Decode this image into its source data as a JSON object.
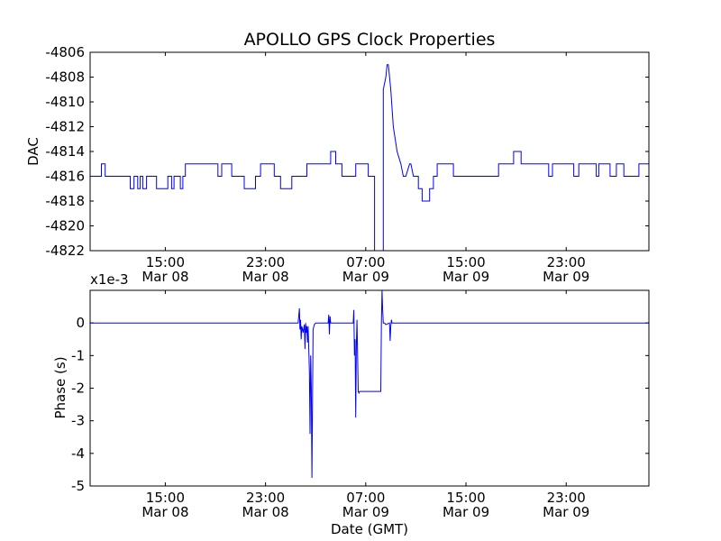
{
  "chart_data": [
    {
      "type": "line",
      "title": "APOLLO GPS Clock Properties",
      "xlabel": "",
      "ylabel": "DAC",
      "ylim": [
        -4822,
        -4806
      ],
      "yticks": [
        -4822,
        -4820,
        -4818,
        -4816,
        -4814,
        -4812,
        -4810,
        -4808,
        -4806
      ],
      "xlim": [
        9.0,
        53.6
      ],
      "xticks": [
        {
          "hours": 15,
          "time": "15:00",
          "date": "Mar 08"
        },
        {
          "hours": 23,
          "time": "23:00",
          "date": "Mar 08"
        },
        {
          "hours": 31,
          "time": "07:00",
          "date": "Mar 09"
        },
        {
          "hours": 39,
          "time": "15:00",
          "date": "Mar 09"
        },
        {
          "hours": 47,
          "time": "23:00",
          "date": "Mar 09"
        }
      ],
      "line_color": "#0000ff",
      "x_unit_note": "hours since Mar 08 00:00 GMT",
      "series": [
        {
          "x": [
            9.0,
            9.9,
            9.9,
            10.2,
            10.2,
            12.2,
            12.2,
            12.5,
            12.5,
            12.8,
            12.8,
            13.0,
            13.0,
            13.2,
            13.2,
            13.5,
            13.5,
            14.3,
            14.3,
            15.2,
            15.2,
            15.5,
            15.5,
            15.7,
            15.7,
            16.2,
            16.2,
            16.4,
            16.4,
            16.6,
            16.6,
            19.2,
            19.2,
            19.5,
            19.5,
            20.3,
            20.3,
            21.3,
            21.3,
            22.2,
            22.2,
            22.6,
            22.6,
            23.7,
            23.7,
            24.2,
            24.2,
            25.1,
            25.1,
            26.3,
            26.3,
            28.2,
            28.2,
            28.6,
            28.6,
            29.1,
            29.1,
            30.2,
            30.2,
            31.2,
            31.2,
            31.7,
            31.7,
            32.4,
            32.4,
            32.6,
            32.7,
            32.8,
            33.0,
            33.2,
            33.5,
            33.8,
            34.0,
            34.2,
            34.5,
            34.6,
            34.8,
            35.2,
            35.2,
            35.5,
            35.5,
            36.1,
            36.1,
            36.4,
            36.4,
            36.7,
            36.7,
            38.0,
            38.0,
            41.6,
            41.6,
            42.8,
            42.8,
            43.4,
            43.4,
            45.6,
            45.6,
            45.9,
            45.9,
            47.6,
            47.6,
            48.0,
            48.0,
            49.4,
            49.4,
            49.6,
            49.6,
            50.5,
            50.5,
            51.0,
            51.0,
            51.6,
            51.6,
            52.8,
            52.8,
            53.6
          ],
          "y": [
            -4816,
            -4816,
            -4815,
            -4815,
            -4816,
            -4816,
            -4817,
            -4817,
            -4816,
            -4816,
            -4817,
            -4817,
            -4816,
            -4816,
            -4817,
            -4817,
            -4816,
            -4816,
            -4817,
            -4817,
            -4816,
            -4816,
            -4817,
            -4817,
            -4816,
            -4816,
            -4817,
            -4817,
            -4816,
            -4816,
            -4815,
            -4815,
            -4816,
            -4816,
            -4815,
            -4815,
            -4816,
            -4816,
            -4817,
            -4817,
            -4816,
            -4816,
            -4815,
            -4815,
            -4816,
            -4816,
            -4817,
            -4817,
            -4816,
            -4816,
            -4815,
            -4815,
            -4814,
            -4814,
            -4815,
            -4815,
            -4816,
            -4816,
            -4815,
            -4815,
            -4816,
            -4816,
            -4822,
            -4822,
            -4809,
            -4808,
            -4807,
            -4807,
            -4809,
            -4812,
            -4814,
            -4815,
            -4816,
            -4816,
            -4815,
            -4815,
            -4816,
            -4816,
            -4817,
            -4817,
            -4818,
            -4818,
            -4817,
            -4817,
            -4816,
            -4816,
            -4815,
            -4815,
            -4816,
            -4816,
            -4815,
            -4815,
            -4814,
            -4814,
            -4815,
            -4815,
            -4816,
            -4816,
            -4815,
            -4815,
            -4816,
            -4816,
            -4815,
            -4815,
            -4816,
            -4816,
            -4815,
            -4815,
            -4816,
            -4816,
            -4815,
            -4815,
            -4816,
            -4816,
            -4815,
            -4815
          ]
        }
      ]
    },
    {
      "type": "line",
      "title": "",
      "xlabel": "Date (GMT)",
      "ylabel": "Phase (s)",
      "y_offset_label": "x1e-3",
      "ylim": [
        -5,
        1
      ],
      "yticks": [
        -5,
        -4,
        -3,
        -2,
        -1,
        0
      ],
      "xlim": [
        9.0,
        53.6
      ],
      "xticks": [
        {
          "hours": 15,
          "time": "15:00",
          "date": "Mar 08"
        },
        {
          "hours": 23,
          "time": "23:00",
          "date": "Mar 08"
        },
        {
          "hours": 31,
          "time": "07:00",
          "date": "Mar 09"
        },
        {
          "hours": 39,
          "time": "15:00",
          "date": "Mar 09"
        },
        {
          "hours": 47,
          "time": "23:00",
          "date": "Mar 09"
        }
      ],
      "line_color": "#0000ff",
      "series": [
        {
          "x": [
            9.0,
            25.6,
            25.7,
            25.75,
            25.8,
            25.85,
            25.9,
            26.0,
            26.1,
            26.15,
            26.2,
            26.25,
            26.3,
            26.35,
            26.4,
            26.5,
            26.55,
            26.6,
            26.65,
            26.7,
            26.8,
            26.9,
            27.0,
            28.0,
            28.05,
            28.1,
            28.15,
            28.2,
            30.0,
            30.05,
            30.1,
            30.15,
            30.2,
            30.25,
            30.3,
            30.4,
            30.45,
            30.5,
            30.55,
            30.6,
            30.7,
            30.8,
            30.85,
            31.5,
            32.0,
            32.2,
            32.25,
            32.3,
            32.35,
            32.4,
            32.5,
            32.6,
            32.9,
            32.95,
            33.0,
            33.05,
            33.1,
            53.6
          ],
          "y": [
            0,
            0,
            0.45,
            -0.2,
            0.1,
            -0.5,
            -0.1,
            -0.3,
            -0.05,
            -0.8,
            0,
            -0.3,
            -0.1,
            -0.6,
            -0.1,
            -1.5,
            -3.4,
            -1.0,
            -2.0,
            -4.75,
            -0.2,
            -0.05,
            0,
            0,
            0.25,
            -0.35,
            0.2,
            0,
            0,
            0.4,
            -1.0,
            -0.5,
            -2.9,
            -0.7,
            0.1,
            -2.1,
            -2.15,
            -2.1,
            -2.1,
            -2.1,
            -2.1,
            -2.1,
            -2.1,
            -2.1,
            -2.1,
            -2.1,
            0,
            1.0,
            0.4,
            0,
            0,
            -0.05,
            0,
            -0.55,
            -0.1,
            0.1,
            0,
            0
          ]
        }
      ]
    }
  ]
}
